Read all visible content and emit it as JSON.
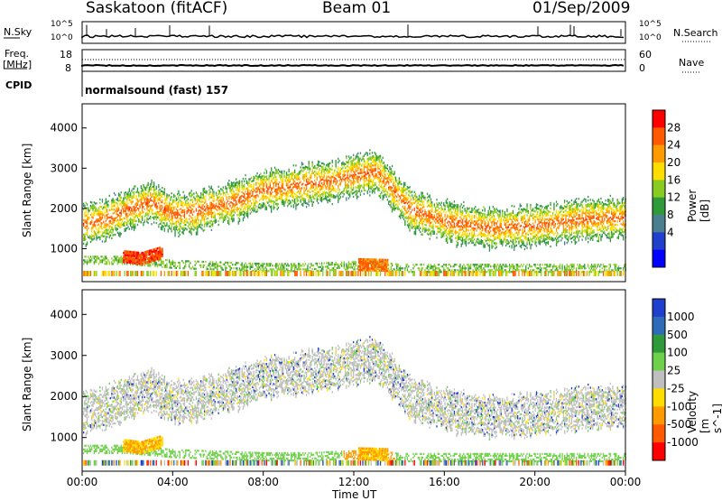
{
  "header": {
    "station": "Saskatoon (fitACF)",
    "beam": "Beam 01",
    "date": "01/Sep/2009"
  },
  "top_panels": {
    "nsky_label": "N.Sky",
    "nsearch_label": "N.Search",
    "nsky_ticks": [
      "10^5",
      "10^0"
    ],
    "nsearch_ticks": [
      "10^5",
      "10^0"
    ],
    "freq_label": "Freq.",
    "freq_unit": "[MHz]",
    "freq_ticks": [
      "18",
      "8"
    ],
    "nave_label": "Nave",
    "nave_ticks": [
      "60",
      "0"
    ],
    "cpid_label": "CPID",
    "cpid_text": "normalsound (fast) 157"
  },
  "panels": {
    "power": {
      "ylabel": "Slant Range [km]",
      "cbar_label": "Power [dB]",
      "cbar_ticks": [
        "28",
        "24",
        "20",
        "16",
        "12",
        "8",
        "4"
      ],
      "cbar_colors": [
        "#ff0000",
        "#ff5a00",
        "#ff9a00",
        "#ffdd00",
        "#88cc22",
        "#2e9a3a",
        "#4a7f8f",
        "#1f3fcc",
        "#0000ff"
      ]
    },
    "velocity": {
      "ylabel": "Slant Range [km]",
      "cbar_label": "Velocity [m s^-1]",
      "cbar_ticks": [
        "1000",
        "500",
        "100",
        "25",
        "-25",
        "-100",
        "-500",
        "-1000"
      ],
      "cbar_colors": [
        "#1f3fcc",
        "#2e6bb8",
        "#2e9a3a",
        "#6fd04a",
        "#bfbfbf",
        "#ffdd00",
        "#ff9a00",
        "#ff5a00",
        "#ff0000"
      ]
    },
    "range_ticks": [
      "4000",
      "3000",
      "2000",
      "1000"
    ]
  },
  "x_axis": {
    "ticks": [
      "00:00",
      "04:00",
      "08:00",
      "12:00",
      "16:00",
      "20:00",
      "00:00"
    ],
    "label": "Time UT"
  },
  "chart_data": [
    {
      "type": "heatmap",
      "title": "Saskatoon (fitACF) Beam 01 01/Sep/2009",
      "xlabel": "Time UT",
      "ylabel": "Slant Range [km]",
      "xlim": [
        "00:00",
        "24:00"
      ],
      "ylim": [
        180,
        4600
      ],
      "colorbar": {
        "label": "Power [dB]",
        "range": [
          0,
          30
        ],
        "ticks": [
          4,
          8,
          12,
          16,
          20,
          24,
          28
        ]
      },
      "features": [
        {
          "name": "upper band",
          "t": [
            0,
            1,
            2,
            3,
            4,
            5,
            6,
            7,
            8,
            9,
            10,
            11,
            12,
            13,
            13.7,
            14.5,
            15.5,
            16.5,
            18,
            20,
            22,
            24
          ],
          "range_km": [
            1600,
            1700,
            1950,
            2150,
            1850,
            1900,
            2050,
            2200,
            2450,
            2500,
            2600,
            2650,
            2800,
            2900,
            2450,
            1950,
            1750,
            1600,
            1500,
            1550,
            1700,
            1750
          ]
        },
        {
          "name": "near band",
          "t": [
            2,
            4,
            6,
            8,
            10,
            11.5,
            13,
            14,
            18,
            24
          ],
          "range_km": [
            700,
            600,
            560,
            520,
            520,
            560,
            580,
            500,
            500,
            500
          ]
        },
        {
          "name": "strong patch",
          "t": [
            1.8,
            2.6,
            3.5
          ],
          "range_km": [
            800,
            750,
            900
          ],
          "power_db": 28
        },
        {
          "name": "strong patch",
          "t": [
            12.2,
            13.5
          ],
          "range_km": [
            600,
            580
          ],
          "power_db": 26
        }
      ]
    },
    {
      "type": "heatmap",
      "title": "Saskatoon (fitACF) Beam 01 01/Sep/2009",
      "xlabel": "Time UT",
      "ylabel": "Slant Range [km]",
      "xlim": [
        "00:00",
        "24:00"
      ],
      "ylim": [
        180,
        4600
      ],
      "colorbar": {
        "label": "Velocity [m s^-1]",
        "range": [
          -1000,
          1000
        ],
        "ticks": [
          1000,
          500,
          100,
          25,
          -25,
          -100,
          -500,
          -1000
        ]
      },
      "features": [
        {
          "name": "ground scatter band",
          "t": [
            0,
            2,
            4,
            8,
            12,
            13.7,
            16,
            20,
            24
          ],
          "range_km": [
            1600,
            1900,
            1900,
            2450,
            2800,
            2450,
            1700,
            1550,
            1750
          ],
          "velocity_ms": 0
        },
        {
          "name": "negative patch",
          "t": [
            12,
            13.5
          ],
          "range_km": [
            500,
            500
          ],
          "velocity_ms": -100
        }
      ]
    }
  ]
}
